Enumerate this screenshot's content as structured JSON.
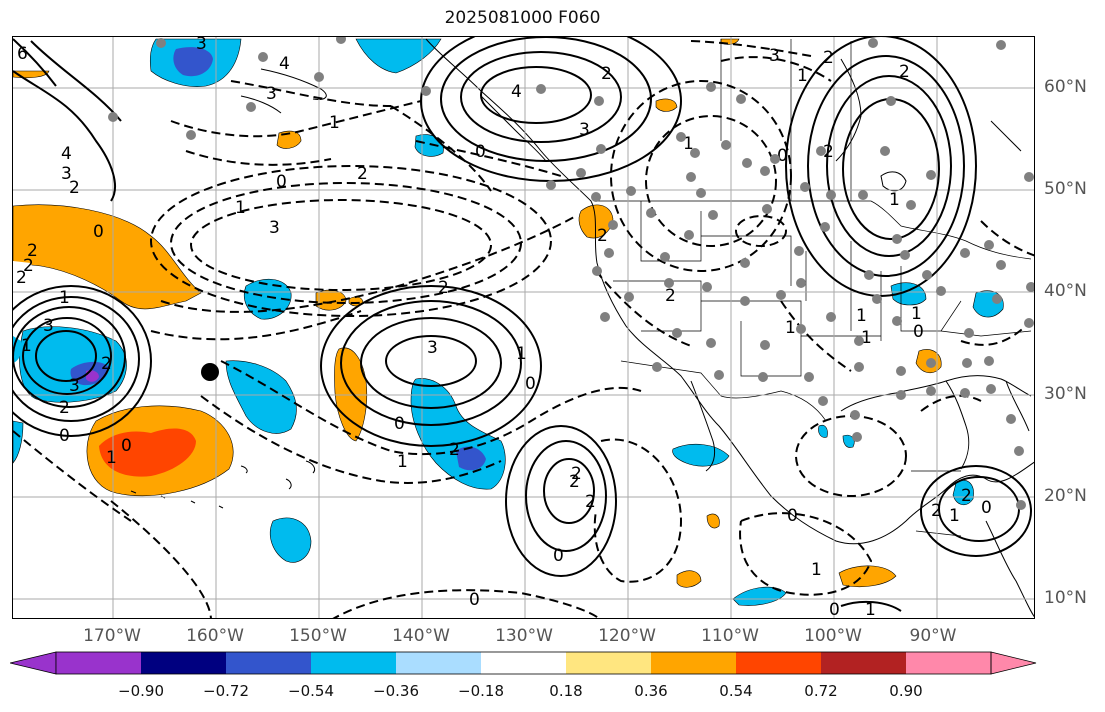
{
  "title": "2025081000 F060",
  "lon_labels": [
    "170°W",
    "160°W",
    "150°W",
    "140°W",
    "130°W",
    "120°W",
    "110°W",
    "100°W",
    "90°W"
  ],
  "lat_labels": [
    "60°N",
    "50°N",
    "40°N",
    "30°N",
    "20°N",
    "10°N"
  ],
  "colorbar": {
    "colors": [
      "#9933cc",
      "#000080",
      "#3355cc",
      "#00bbee",
      "#aaddff",
      "#ffffff",
      "#ffe680",
      "#ffa500",
      "#ff4500",
      "#b22222",
      "#ff88aa"
    ],
    "tick_labels": [
      "−0.90",
      "−0.72",
      "−0.54",
      "−0.36",
      "−0.18",
      "0.18",
      "0.36",
      "0.54",
      "0.72",
      "0.90"
    ]
  },
  "contour_labels": [
    "6",
    "3",
    "4",
    "3",
    "2",
    "1",
    "2",
    "4",
    "3",
    "0",
    "2",
    "1",
    "0",
    "1",
    "2",
    "3",
    "2",
    "1",
    "0",
    "3",
    "1",
    "2",
    "3",
    "4",
    "0",
    "2",
    "0",
    "3",
    "2",
    "1",
    "0",
    "2",
    "2",
    "1",
    "0",
    "1",
    "2",
    "3",
    "1",
    "0",
    "1",
    "2",
    "1",
    "2",
    "0",
    "2",
    "2",
    "1",
    "0",
    "1",
    "0",
    "1",
    "2",
    "3",
    "2",
    "0",
    "2",
    "0",
    "2",
    "1",
    "1",
    "0",
    "2",
    "1"
  ],
  "accent_colors": {
    "contour": "#000000",
    "station_dot": "#808080",
    "marker": "#000000",
    "grid": "#aaaaaa"
  }
}
